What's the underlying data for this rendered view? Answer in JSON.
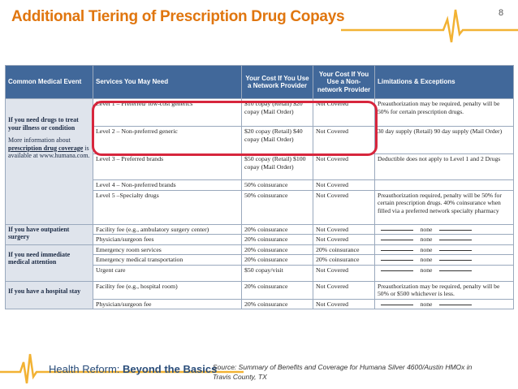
{
  "header": {
    "title": "Additional Tiering of Prescription Drug Copays",
    "page_number": "8"
  },
  "table": {
    "columns": [
      "Common Medical Event",
      "Services You May Need",
      "Your Cost If You Use a Network Provider",
      "Your Cost If You Use a Non-network Provider",
      "Limitations & Exceptions"
    ],
    "events": {
      "drugs": "If you need drugs to treat your illness or condition",
      "drugs_info_prefix": "More information about",
      "drugs_info_link": "prescription drug coverage",
      "drugs_info_suffix": "is available at www.humana.com.",
      "outpatient": "If you have outpatient surgery",
      "immediate": "If you need immediate medical attention",
      "hospital": "If you have a hospital stay"
    },
    "rows": [
      {
        "service": "Level 1 – Preferred/ low-cost generics",
        "network": "$10 copay (Retail) $20 copay (Mail Order)",
        "non_network": "Not Covered",
        "limitations": "Preauthorization may be required, penalty will be 50% for certain prescription drugs."
      },
      {
        "service": "Level 2 – Non-preferred generic",
        "network": "$20 copay (Retail) $40 copay (Mail Order)",
        "non_network": "Not Covered",
        "limitations": "30 day supply (Retail) 90 day supply (Mail Order)"
      },
      {
        "service": "Level 3 – Preferred brands",
        "network": "$50 copay (Retail) $100 copay (Mail Order)",
        "non_network": "Not Covered",
        "limitations": "Deductible does not apply to Level 1 and 2 Drugs"
      },
      {
        "service": "Level 4 – Non-preferred brands",
        "network": "50% coinsurance",
        "non_network": "Not Covered",
        "limitations": ""
      },
      {
        "service": "Level 5 –Specialty drugs",
        "network": "50% coinsurance",
        "non_network": "Not Covered",
        "limitations": "Preauthorization required, penalty will be 50% for certain prescription drugs. 40% coinsurance when filled via a preferred network specialty pharmacy"
      },
      {
        "service": "Facility fee (e.g., ambulatory surgery center)",
        "network": "20% coinsurance",
        "non_network": "Not Covered",
        "limitations": "none"
      },
      {
        "service": "Physician/surgeon fees",
        "network": "20% coinsurance",
        "non_network": "Not Covered",
        "limitations": "none"
      },
      {
        "service": "Emergency room services",
        "network": "20% coinsurance",
        "non_network": "20% coinsurance",
        "limitations": "none"
      },
      {
        "service": "Emergency medical transportation",
        "network": "20% coinsurance",
        "non_network": "20% coinsurance",
        "limitations": "none"
      },
      {
        "service": "Urgent care",
        "network": "$50 copay/visit",
        "non_network": "Not Covered",
        "limitations": "none"
      },
      {
        "service": "Facility fee (e.g., hospital room)",
        "network": "20% coinsurance",
        "non_network": "Not Covered",
        "limitations": "Preauthorization may be required, penalty will be 50% or $500 whichever is less."
      },
      {
        "service": "Physician/surgeon fee",
        "network": "20% coinsurance",
        "non_network": "Not Covered",
        "limitations": "none"
      }
    ]
  },
  "footer": {
    "brand_prefix": "Health Reform:",
    "brand_emphasis": "Beyond the Basics",
    "source_label": "Source:",
    "source_text": "Summary of Benefits and Coverage for Humana Silver 4600/Austin HMOx in Travis County, TX"
  },
  "colors": {
    "title": "#e0760f",
    "header_bg": "#41689a",
    "event_bg": "#dfe4ec",
    "highlight": "#d7263d",
    "ekg": "#f2b233"
  }
}
